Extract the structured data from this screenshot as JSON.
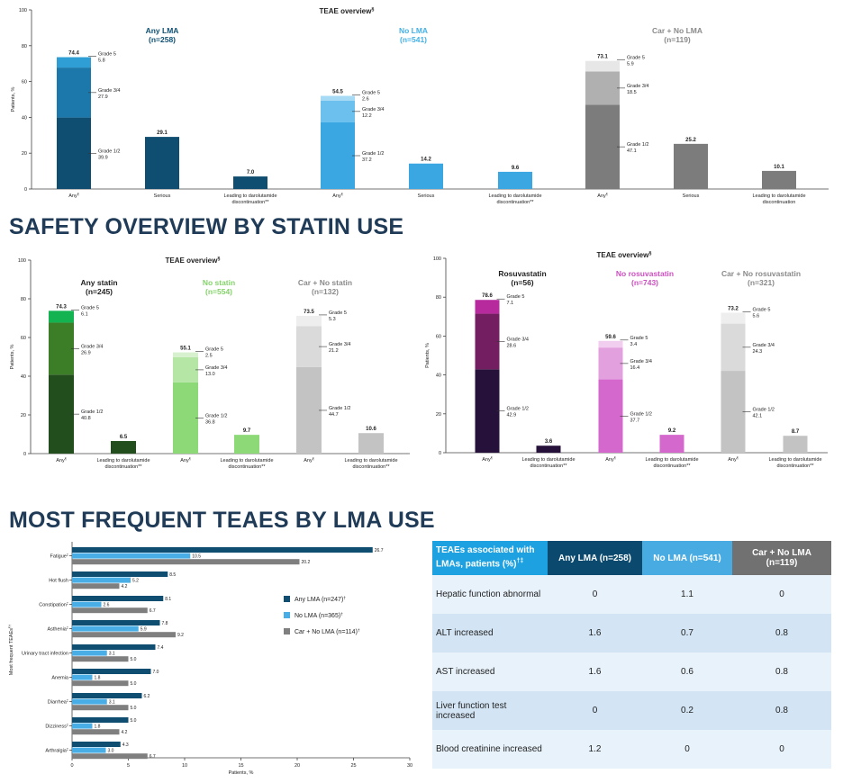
{
  "headings": {
    "statin": "SAFETY OVERVIEW BY STATIN USE",
    "frequent": "MOST FREQUENT TEAES BY LMA USE"
  },
  "chart_data": [
    {
      "id": "lma",
      "type": "bar",
      "title": "TEAE overview",
      "title_sup": "§",
      "ylabel": "Patients, %",
      "ylim": [
        0,
        100
      ],
      "yticks": [
        0,
        20,
        40,
        60,
        80,
        100
      ],
      "groups": [
        {
          "name": "Any LMA",
          "n": "(n=258)",
          "name_color": "#0e4f73",
          "colors": [
            "#0f4d71",
            "#1c78aa",
            "#2e9ed5"
          ],
          "solid": "#0f4d71",
          "bars": [
            {
              "label": "Any",
              "sup": "¶",
              "total": "74.4",
              "segments": [
                {
                  "name": "Grade 1/2",
                  "value": 39.9
                },
                {
                  "name": "Grade 3/4",
                  "value": 27.9
                },
                {
                  "name": "Grade 5",
                  "value": 5.8
                }
              ]
            },
            {
              "label": "Serious",
              "sup": "",
              "total": "29.1",
              "value": 29.1
            },
            {
              "label": "Leading to darolutamide discontinuation**",
              "sup": "",
              "total": "7.0",
              "value": 7.0
            }
          ]
        },
        {
          "name": "No LMA",
          "n": "(n=541)",
          "name_color": "#43b1e6",
          "colors": [
            "#3aa6e2",
            "#6cc0ee",
            "#a7dbf5"
          ],
          "solid": "#3aa6e2",
          "bars": [
            {
              "label": "Any",
              "sup": "¶",
              "total": "54.5",
              "segments": [
                {
                  "name": "Grade 1/2",
                  "value": 37.2
                },
                {
                  "name": "Grade 3/4",
                  "value": 12.2
                },
                {
                  "name": "Grade 5",
                  "value": 2.6
                }
              ]
            },
            {
              "label": "Serious",
              "sup": "",
              "total": "14.2",
              "value": 14.2
            },
            {
              "label": "Leading to darolutamide discontinuation**",
              "sup": "",
              "total": "9.6",
              "value": 9.6
            }
          ]
        },
        {
          "name": "Car + No LMA",
          "n": "(n=119)",
          "name_color": "#8a8a8a",
          "colors": [
            "#7c7c7c",
            "#b0b0b0",
            "#e7e7e7"
          ],
          "solid": "#7c7c7c",
          "bars": [
            {
              "label": "Any",
              "sup": "¶",
              "total": "73.1",
              "segments": [
                {
                  "name": "Grade 1/2",
                  "value": 47.1
                },
                {
                  "name": "Grade 3/4",
                  "value": 18.5
                },
                {
                  "name": "Grade 5",
                  "value": 5.9
                }
              ]
            },
            {
              "label": "Serious",
              "sup": "",
              "total": "25.2",
              "value": 25.2
            },
            {
              "label": "Leading to darolutamide discontinuation",
              "sup": "",
              "total": "10.1",
              "value": 10.1
            }
          ]
        }
      ]
    },
    {
      "id": "statin",
      "type": "bar",
      "title": "TEAE overview",
      "title_sup": "§",
      "ylabel": "Patients, %",
      "ylim": [
        0,
        100
      ],
      "yticks": [
        0,
        20,
        40,
        60,
        80,
        100
      ],
      "groups": [
        {
          "name": "Any statin",
          "n": "(n=245)",
          "name_color": "#222222",
          "colors": [
            "#214e1c",
            "#3c7d27",
            "#13b352"
          ],
          "solid": "#214e1c",
          "bars": [
            {
              "label": "Any",
              "sup": "¶",
              "total": "74.3",
              "segments": [
                {
                  "name": "Grade 1/2",
                  "value": 40.8
                },
                {
                  "name": "Grade 3/4",
                  "value": 26.9
                },
                {
                  "name": "Grade 5",
                  "value": 6.1
                }
              ]
            },
            {
              "label": "Leading to darolutamide discontinuation**",
              "sup": "",
              "total": "6.5",
              "value": 6.5
            }
          ]
        },
        {
          "name": "No statin",
          "n": "(n=554)",
          "name_color": "#85d36b",
          "colors": [
            "#8dd978",
            "#b5e6a5",
            "#d7f0cd"
          ],
          "solid": "#8dd978",
          "bars": [
            {
              "label": "Any",
              "sup": "¶",
              "total": "55.1",
              "segments": [
                {
                  "name": "Grade 1/2",
                  "value": 36.8
                },
                {
                  "name": "Grade 3/4",
                  "value": 13.0
                },
                {
                  "name": "Grade 5",
                  "value": 2.5
                }
              ]
            },
            {
              "label": "Leading to darolutamide discontinuation**",
              "sup": "",
              "total": "9.7",
              "value": 9.7
            }
          ]
        },
        {
          "name": "Car + No statin",
          "n": "(n=132)",
          "name_color": "#8a8a8a",
          "colors": [
            "#c3c3c3",
            "#dadada",
            "#eeeeee"
          ],
          "solid": "#c3c3c3",
          "bars": [
            {
              "label": "Any",
              "sup": "¶",
              "total": "73.5",
              "segments": [
                {
                  "name": "Grade 1/2",
                  "value": 44.7
                },
                {
                  "name": "Grade 3/4",
                  "value": 21.2
                },
                {
                  "name": "Grade 5",
                  "value": 5.3
                }
              ]
            },
            {
              "label": "Leading to darolutamide discontinuation**",
              "sup": "",
              "total": "10.6",
              "value": 10.6
            }
          ]
        }
      ]
    },
    {
      "id": "rosuvastatin",
      "type": "bar",
      "title": "TEAE overview",
      "title_sup": "§",
      "ylabel": "Patients, %",
      "ylim": [
        0,
        100
      ],
      "yticks": [
        0,
        20,
        40,
        60,
        80,
        100
      ],
      "groups": [
        {
          "name": "Rosuvastatin",
          "n": "(n=56)",
          "name_color": "#222222",
          "colors": [
            "#26113a",
            "#731e60",
            "#b72a9e"
          ],
          "solid": "#26113a",
          "bars": [
            {
              "label": "Any",
              "sup": "¶",
              "total": "78.6",
              "segments": [
                {
                  "name": "Grade 1/2",
                  "value": 42.9
                },
                {
                  "name": "Grade 3/4",
                  "value": 28.6
                },
                {
                  "name": "Grade 5",
                  "value": 7.1
                }
              ]
            },
            {
              "label": "Leading to darolutamide discontinuation**",
              "sup": "",
              "total": "3.6",
              "value": 3.6
            }
          ]
        },
        {
          "name": "No rosuvastatin",
          "n": "(n=743)",
          "name_color": "#cc4fbf",
          "colors": [
            "#d468cd",
            "#e3a0df",
            "#f1cdef"
          ],
          "solid": "#d468cd",
          "bars": [
            {
              "label": "Any",
              "sup": "¶",
              "total": "59.6",
              "segments": [
                {
                  "name": "Grade 1/2",
                  "value": 37.7
                },
                {
                  "name": "Grade 3/4",
                  "value": 16.4
                },
                {
                  "name": "Grade 5",
                  "value": 3.4
                }
              ]
            },
            {
              "label": "Leading to darolutamide discontinuation**",
              "sup": "",
              "total": "9.2",
              "value": 9.2
            }
          ]
        },
        {
          "name": "Car + No rosuvastatin",
          "n": "(n=321)",
          "name_color": "#8a8a8a",
          "colors": [
            "#c3c3c3",
            "#dadada",
            "#eeeeee"
          ],
          "solid": "#c3c3c3",
          "bars": [
            {
              "label": "Any",
              "sup": "¶",
              "total": "73.2",
              "segments": [
                {
                  "name": "Grade 1/2",
                  "value": 42.1
                },
                {
                  "name": "Grade 3/4",
                  "value": 24.3
                },
                {
                  "name": "Grade 5",
                  "value": 5.6
                }
              ]
            },
            {
              "label": "Leading to darolutamide discontinuation**",
              "sup": "",
              "total": "8.7",
              "value": 8.7
            }
          ]
        }
      ]
    },
    {
      "id": "frequent",
      "type": "bar",
      "orientation": "horizontal",
      "xlabel": "Patients, %",
      "ylabel": "Most frequent TEAEs",
      "ylabel_sup": "¶†",
      "xlim": [
        0,
        30
      ],
      "xticks": [
        0,
        5,
        10,
        15,
        20,
        25,
        30
      ],
      "categories": [
        {
          "name": "Fatigue",
          "sup": "‡"
        },
        {
          "name": "Hot flush",
          "sup": ""
        },
        {
          "name": "Constipation",
          "sup": "‡"
        },
        {
          "name": "Asthenia",
          "sup": "‡"
        },
        {
          "name": "Urinary tract infection",
          "sup": ""
        },
        {
          "name": "Anemia",
          "sup": ""
        },
        {
          "name": "Diarrhea",
          "sup": "‡"
        },
        {
          "name": "Dizziness",
          "sup": "‡"
        },
        {
          "name": "Arthralgia",
          "sup": "‡"
        }
      ],
      "series": [
        {
          "name": "Any LMA (n=247)",
          "sup": "†",
          "color": "#0f4d71",
          "values": [
            26.7,
            8.5,
            8.1,
            7.8,
            7.4,
            7.0,
            6.2,
            5.0,
            4.3
          ]
        },
        {
          "name": "No LMA (n=365)",
          "sup": "†",
          "color": "#4aaee6",
          "values": [
            10.5,
            5.2,
            2.6,
            5.9,
            3.1,
            1.8,
            3.1,
            1.8,
            3.0
          ]
        },
        {
          "name": "Car + No LMA (n=114)",
          "sup": "†",
          "color": "#7f7f7f",
          "values": [
            20.2,
            4.2,
            6.7,
            9.2,
            5.0,
            5.0,
            5.0,
            4.2,
            6.7
          ]
        }
      ]
    },
    {
      "id": "lma-table",
      "type": "table",
      "header": [
        "TEAEs associated with LMAs, patients (%)",
        "Any LMA (n=258)",
        "No LMA (n=541)",
        "Car + No LMA (n=119)"
      ],
      "header_sup": "†‡",
      "rows": [
        [
          "Hepatic function abnormal",
          "0",
          "1.1",
          "0"
        ],
        [
          "ALT increased",
          "1.6",
          "0.7",
          "0.8"
        ],
        [
          "AST increased",
          "1.6",
          "0.6",
          "0.8"
        ],
        [
          "Liver function test increased",
          "0",
          "0.2",
          "0.8"
        ],
        [
          "Blood creatinine increased",
          "1.2",
          "0",
          "0"
        ]
      ]
    }
  ]
}
